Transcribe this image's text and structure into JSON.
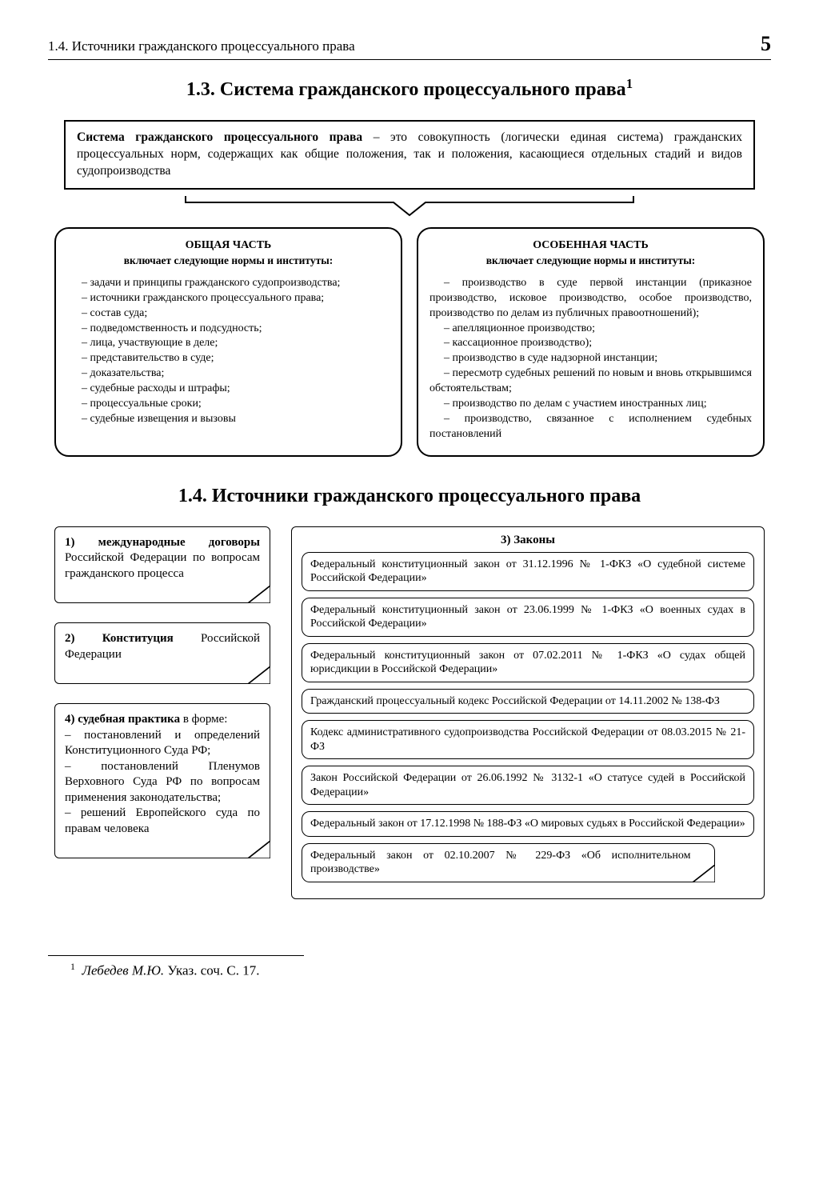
{
  "header": {
    "label": "1.4.  Источники гражданского процессуального права",
    "page": "5"
  },
  "section13": {
    "title_html": "1.3.  Система гражданского процессуального права",
    "definition_bold": "Система гражданского процессуального права",
    "definition_rest": " – это совокупность (логически единая система) гражданских процессуальных норм, содержащих как общие положения, так и положения, касающиеся отдельных стадий и видов судопроизводства",
    "left": {
      "title": "ОБЩАЯ ЧАСТЬ",
      "sub": "включает следующие нормы и институты:",
      "items": [
        "– задачи и принципы гражданского судопроизводства;",
        "– источники гражданского процессуального права;",
        "– состав суда;",
        "– подведомственность и подсудность;",
        "– лица, участвующие в деле;",
        "– представительство в суде;",
        "– доказательства;",
        "– судебные расходы и штрафы;",
        "– процессуальные сроки;",
        "– судебные извещения и вызовы"
      ]
    },
    "right": {
      "title": "ОСОБЕННАЯ ЧАСТЬ",
      "sub": "включает следующие нормы и институты:",
      "items": [
        "– производство в суде первой инстанции (приказное производство, исковое производство, особое производство, производство по делам из публичных правоотношений);",
        "– апелляционное производство;",
        "– кассационное производство);",
        "– производство в суде надзорной инстанции;",
        "– пересмотр судебных решений по новым и вновь открывшимся обстоятельствам;",
        "– производство по делам с участием иностранных лиц;",
        "– производство, связанное с исполнением судебных постановлений"
      ]
    }
  },
  "section14": {
    "title": "1.4.  Источники гражданского процессуального права",
    "box1_bold": "1) международные договоры",
    "box1_rest": " Российской Федерации по вопросам гражданского процесса",
    "box2_bold": "2) Конституция",
    "box2_rest": " Российской Федерации",
    "box4_bold": "4) судебная практика",
    "box4_rest": " в форме:",
    "box4_lines": [
      "– постановлений и определений Конституционного Суда РФ;",
      "– постановлений Пленумов Верховного Суда РФ по вопросам применения законодательства;",
      "– решений Европейского суда по правам человека"
    ],
    "laws_title": "3) Законы",
    "laws": [
      "Федеральный конституционный закон от 31.12.1996 № 1-ФКЗ «О судебной системе Российской Федерации»",
      "Федеральный конституционный закон от 23.06.1999 № 1-ФКЗ «О военных судах в Российской Федерации»",
      "Федеральный конституционный закон от 07.02.2011 № 1-ФКЗ «О судах общей юрисдикции в Российской Федерации»",
      "Гражданский процессуальный кодекс Российской Федерации от 14.11.2002 № 138-ФЗ",
      "Кодекс административного судопроизводства Российской Федерации от 08.03.2015 № 21-ФЗ",
      "Закон Российской Федерации от 26.06.1992 № 3132-1 «О статусе судей в Российской Федерации»",
      "Федеральный закон от 17.12.1998 № 188-ФЗ «О мировых судьях в Российской Федерации»",
      "Федеральный закон от 02.10.2007 № 229-ФЗ «Об исполнительном производстве»"
    ]
  },
  "footnote": {
    "marker": "1",
    "italic": "Лебедев М.Ю.",
    "rest": " Указ. соч. С. 17."
  }
}
